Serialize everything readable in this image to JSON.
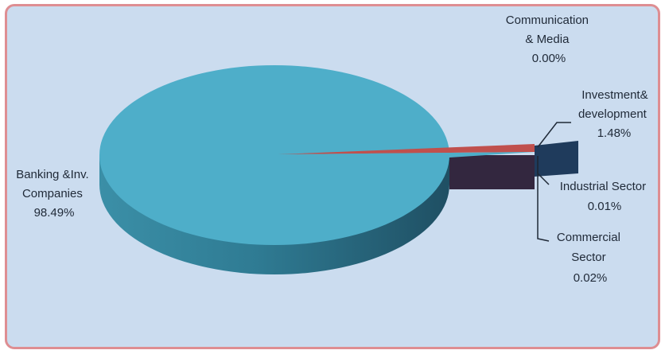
{
  "chart_data": {
    "type": "pie",
    "title": "",
    "slices": [
      {
        "lines": [
          "Banking &Inv.",
          "Companies",
          "98.49%"
        ],
        "value": 98.49,
        "color": "#4eaec9"
      },
      {
        "lines": [
          "Communication",
          "& Media",
          "0.00%"
        ],
        "value": 0.0,
        "color": "#4eaec9"
      },
      {
        "lines": [
          "Investment&",
          "development",
          "1.48%"
        ],
        "value": 1.48,
        "color": "#1f3b5c"
      },
      {
        "lines": [
          "Industrial Sector",
          "0.01%"
        ],
        "value": 0.01,
        "color": "#7a2c3c"
      },
      {
        "lines": [
          "Commercial",
          "Sector",
          "0.02%"
        ],
        "value": 0.02,
        "color": "#c0504d"
      }
    ],
    "style": "3d-exploded"
  }
}
